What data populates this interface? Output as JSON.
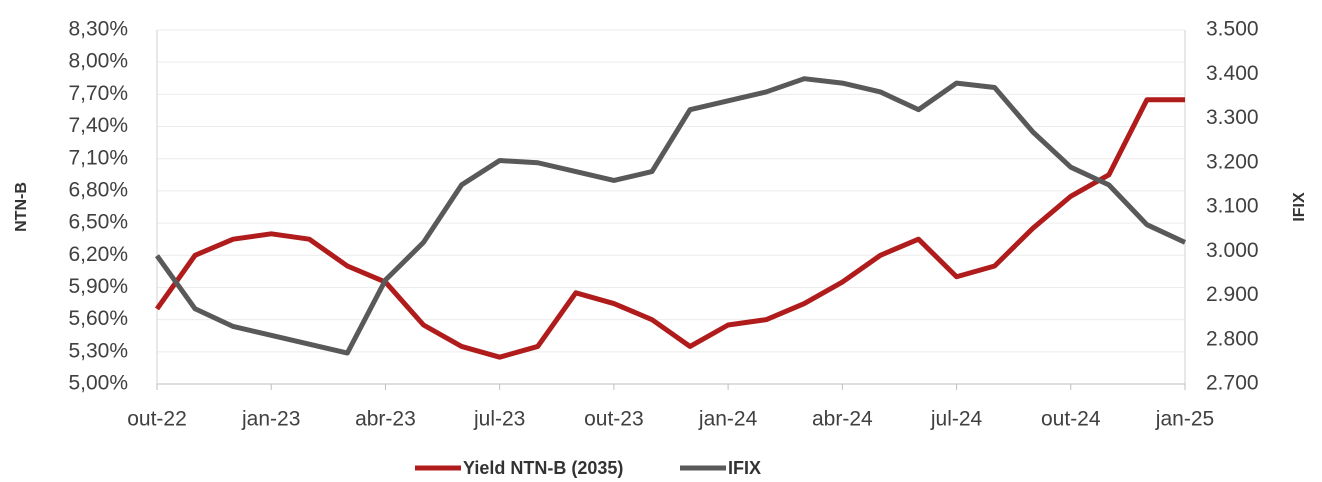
{
  "chart_data": {
    "type": "line",
    "y_label": "NTN-B",
    "y2_label": "IFIX",
    "categories": [
      "out-22",
      null,
      null,
      "jan-23",
      null,
      null,
      "abr-23",
      null,
      null,
      "jul-23",
      null,
      null,
      "out-23",
      null,
      null,
      "jan-24",
      null,
      null,
      "abr-24",
      null,
      null,
      "jul-24",
      null,
      null,
      "out-24",
      null,
      null,
      "jan-25"
    ],
    "ylim": [
      5.0,
      8.3
    ],
    "yticks": [
      {
        "value": 5.0,
        "label": "5,00%"
      },
      {
        "value": 5.3,
        "label": "5,30%"
      },
      {
        "value": 5.6,
        "label": "5,60%"
      },
      {
        "value": 5.9,
        "label": "5,90%"
      },
      {
        "value": 6.2,
        "label": "6,20%"
      },
      {
        "value": 6.5,
        "label": "6,50%"
      },
      {
        "value": 6.8,
        "label": "6,80%"
      },
      {
        "value": 7.1,
        "label": "7,10%"
      },
      {
        "value": 7.4,
        "label": "7,40%"
      },
      {
        "value": 7.7,
        "label": "7,70%"
      },
      {
        "value": 8.0,
        "label": "8,00%"
      },
      {
        "value": 8.3,
        "label": "8,30%"
      }
    ],
    "y2lim": [
      2700,
      3500
    ],
    "y2ticks": [
      {
        "value": 2700,
        "label": "2.700"
      },
      {
        "value": 2800,
        "label": "2.800"
      },
      {
        "value": 2900,
        "label": "2.900"
      },
      {
        "value": 3000,
        "label": "3.000"
      },
      {
        "value": 3100,
        "label": "3.100"
      },
      {
        "value": 3200,
        "label": "3.200"
      },
      {
        "value": 3300,
        "label": "3.300"
      },
      {
        "value": 3400,
        "label": "3.400"
      },
      {
        "value": 3500,
        "label": "3.500"
      }
    ],
    "grid": true,
    "legend": "bottom",
    "series": [
      {
        "name": "Yield NTN-B (2035)",
        "color": "#b01c1c",
        "values": [
          5.7,
          6.2,
          6.35,
          6.4,
          6.35,
          6.1,
          5.95,
          5.55,
          5.35,
          5.25,
          5.35,
          5.85,
          5.75,
          5.6,
          5.35,
          5.55,
          5.6,
          5.75,
          5.95,
          6.2,
          6.35,
          6.0,
          6.1,
          6.45,
          6.75,
          6.95,
          7.65,
          7.65
        ]
      },
      {
        "name": "IFIX",
        "color": "#595959",
        "axis": "y2",
        "values": [
          2990,
          2870,
          2830,
          2810,
          2790,
          2770,
          2935,
          3020,
          3150,
          3205,
          3200,
          3180,
          3160,
          3180,
          3320,
          3340,
          3360,
          3390,
          3380,
          3360,
          3320,
          3380,
          3370,
          3270,
          3190,
          3150,
          3060,
          3020
        ]
      }
    ]
  }
}
